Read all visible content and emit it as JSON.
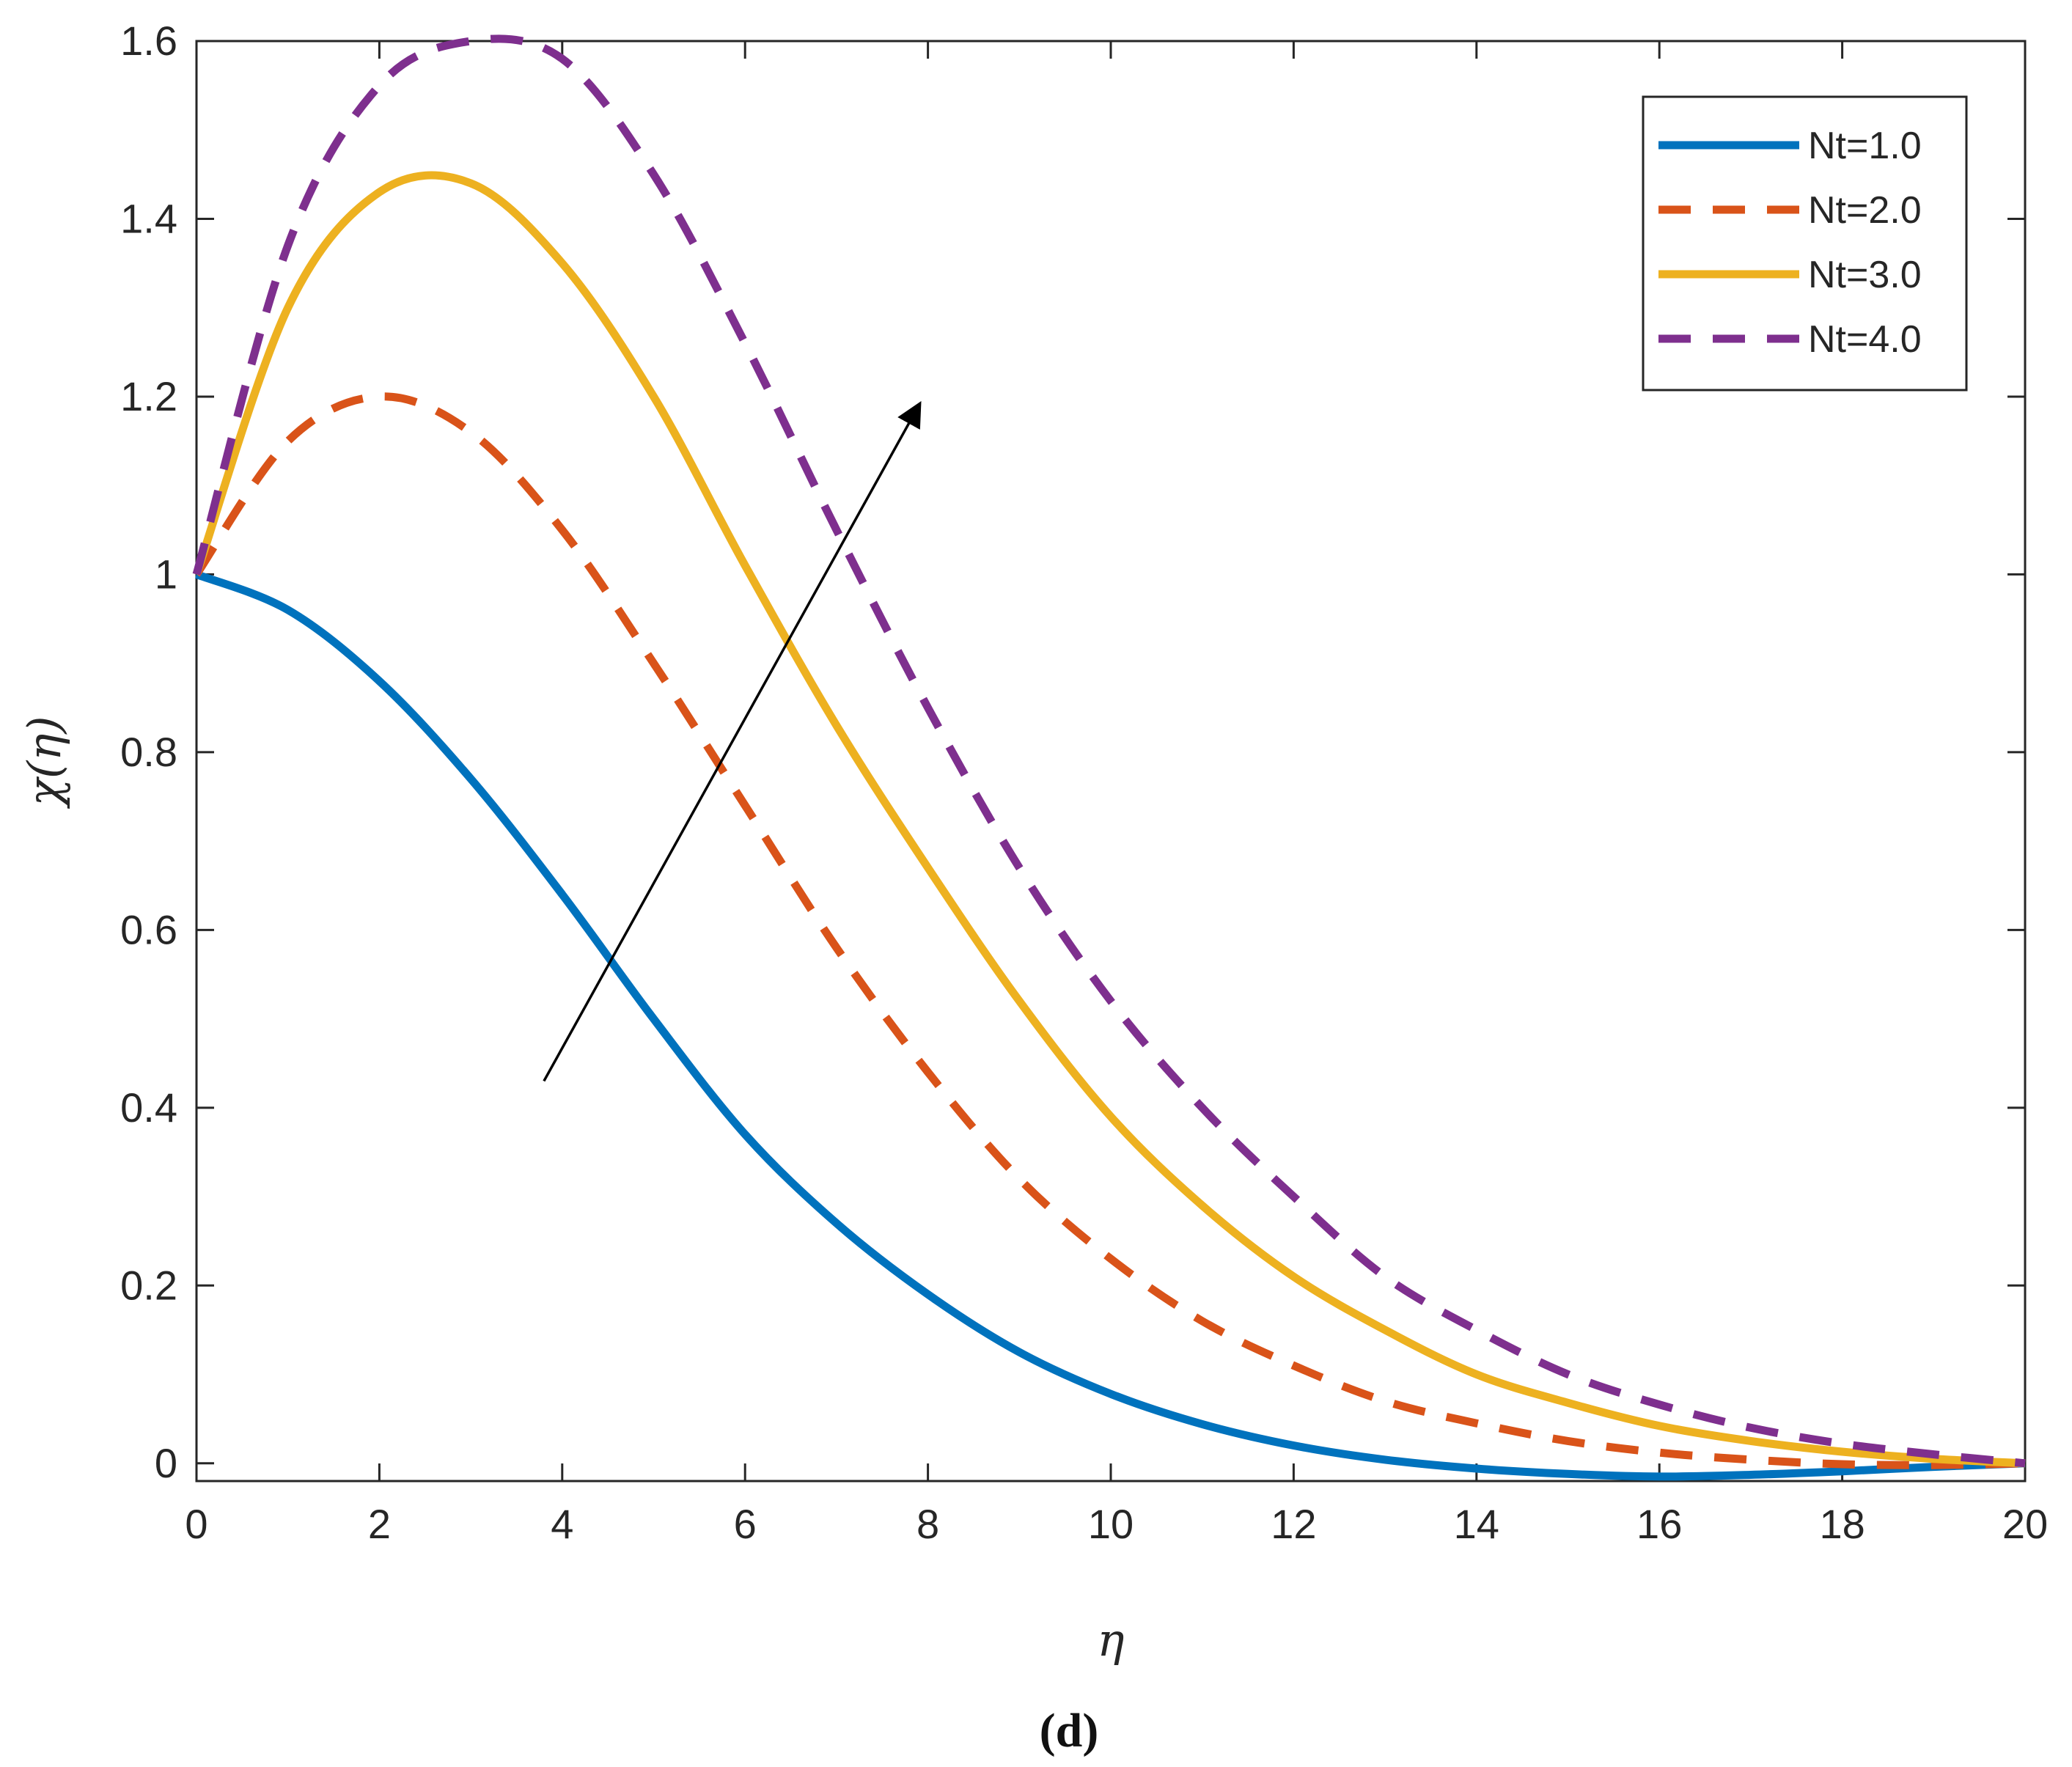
{
  "chart_data": {
    "type": "line",
    "xlabel": "η",
    "ylabel": "χ(η)",
    "caption": "(d)",
    "xlim": [
      0,
      20
    ],
    "ylim": [
      -0.02,
      1.6
    ],
    "xticks": [
      0,
      2,
      4,
      6,
      8,
      10,
      12,
      14,
      16,
      18,
      20
    ],
    "yticks": [
      0,
      0.2,
      0.4,
      0.6,
      0.8,
      1,
      1.2,
      1.4,
      1.6
    ],
    "xtick_labels": [
      "0",
      "2",
      "4",
      "6",
      "8",
      "10",
      "12",
      "14",
      "16",
      "18",
      "20"
    ],
    "ytick_labels": [
      "0",
      "0.2",
      "0.4",
      "0.6",
      "0.8",
      "1",
      "1.2",
      "1.4",
      "1.6"
    ],
    "legend_position": "top-right",
    "arrow": {
      "from": [
        3.8,
        0.43
      ],
      "to": [
        7.9,
        1.19
      ],
      "meaning": "increasing Nt"
    },
    "x": [
      0,
      1,
      2,
      3,
      4,
      5,
      6,
      7,
      8,
      9,
      10,
      11,
      12,
      13,
      14,
      15,
      16,
      17,
      18,
      19,
      20
    ],
    "series": [
      {
        "name": "Nt=1.0",
        "color": "#0072BD",
        "dash": "solid",
        "values": [
          1.0,
          0.96,
          0.88,
          0.77,
          0.64,
          0.5,
          0.37,
          0.27,
          0.19,
          0.125,
          0.078,
          0.044,
          0.02,
          0.004,
          -0.006,
          -0.012,
          -0.015,
          -0.013,
          -0.009,
          -0.004,
          0.0
        ]
      },
      {
        "name": "Nt=2.0",
        "color": "#D95319",
        "dash": "dashed",
        "values": [
          1.0,
          1.15,
          1.2,
          1.16,
          1.05,
          0.9,
          0.74,
          0.58,
          0.44,
          0.32,
          0.23,
          0.16,
          0.11,
          0.07,
          0.045,
          0.025,
          0.012,
          0.004,
          -0.001,
          -0.002,
          0.0
        ]
      },
      {
        "name": "Nt=3.0",
        "color": "#EDB120",
        "dash": "solid",
        "values": [
          1.0,
          1.3,
          1.43,
          1.44,
          1.35,
          1.2,
          1.01,
          0.83,
          0.67,
          0.52,
          0.39,
          0.29,
          0.21,
          0.15,
          0.1,
          0.068,
          0.042,
          0.025,
          0.013,
          0.005,
          0.0
        ]
      },
      {
        "name": "Nt=4.0",
        "color": "#7E2F8E",
        "dash": "dashed",
        "values": [
          1.0,
          1.37,
          1.55,
          1.6,
          1.58,
          1.45,
          1.26,
          1.05,
          0.85,
          0.67,
          0.52,
          0.4,
          0.3,
          0.21,
          0.15,
          0.1,
          0.066,
          0.04,
          0.022,
          0.01,
          0.0
        ]
      }
    ]
  }
}
